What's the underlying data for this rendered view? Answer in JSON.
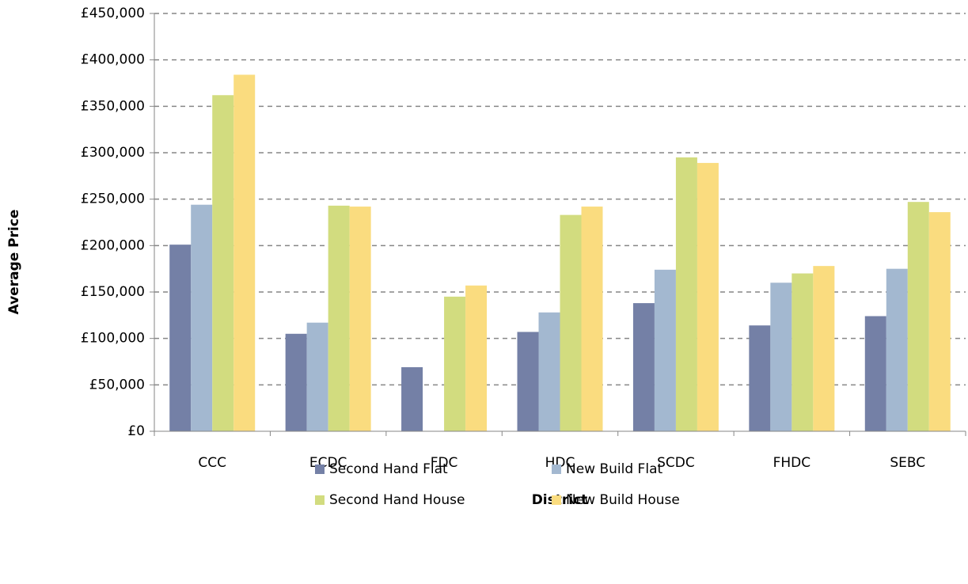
{
  "chart_data": {
    "type": "bar",
    "x_label": "District",
    "y_label": "Average Price",
    "categories": [
      "CCC",
      "ECDC",
      "FDC",
      "HDC",
      "SCDC",
      "FHDC",
      "SEBC"
    ],
    "series": [
      {
        "name": "Second Hand Flat",
        "color": "#7480a6",
        "values": [
          201000,
          105000,
          69000,
          107000,
          138000,
          114000,
          124000
        ]
      },
      {
        "name": "New Build Flat",
        "color": "#a3b8d0",
        "values": [
          244000,
          117000,
          null,
          128000,
          174000,
          160000,
          175000
        ]
      },
      {
        "name": "Second Hand House",
        "color": "#d2dc7f",
        "values": [
          362000,
          243000,
          145000,
          233000,
          295000,
          170000,
          247000
        ]
      },
      {
        "name": "New Build House",
        "color": "#fadc7f",
        "values": [
          384000,
          242000,
          157000,
          242000,
          289000,
          178000,
          236000
        ]
      }
    ],
    "ylim": [
      0,
      450000
    ],
    "yticks": [
      {
        "value": 0,
        "label": "£0"
      },
      {
        "value": 50000,
        "label": "£50,000"
      },
      {
        "value": 100000,
        "label": "£100,000"
      },
      {
        "value": 150000,
        "label": "£150,000"
      },
      {
        "value": 200000,
        "label": "£200,000"
      },
      {
        "value": 250000,
        "label": "£250,000"
      },
      {
        "value": 300000,
        "label": "£300,000"
      },
      {
        "value": 350000,
        "label": "£350,000"
      },
      {
        "value": 400000,
        "label": "£400,000"
      },
      {
        "value": 450000,
        "label": "£450,000"
      }
    ],
    "grid": true
  }
}
